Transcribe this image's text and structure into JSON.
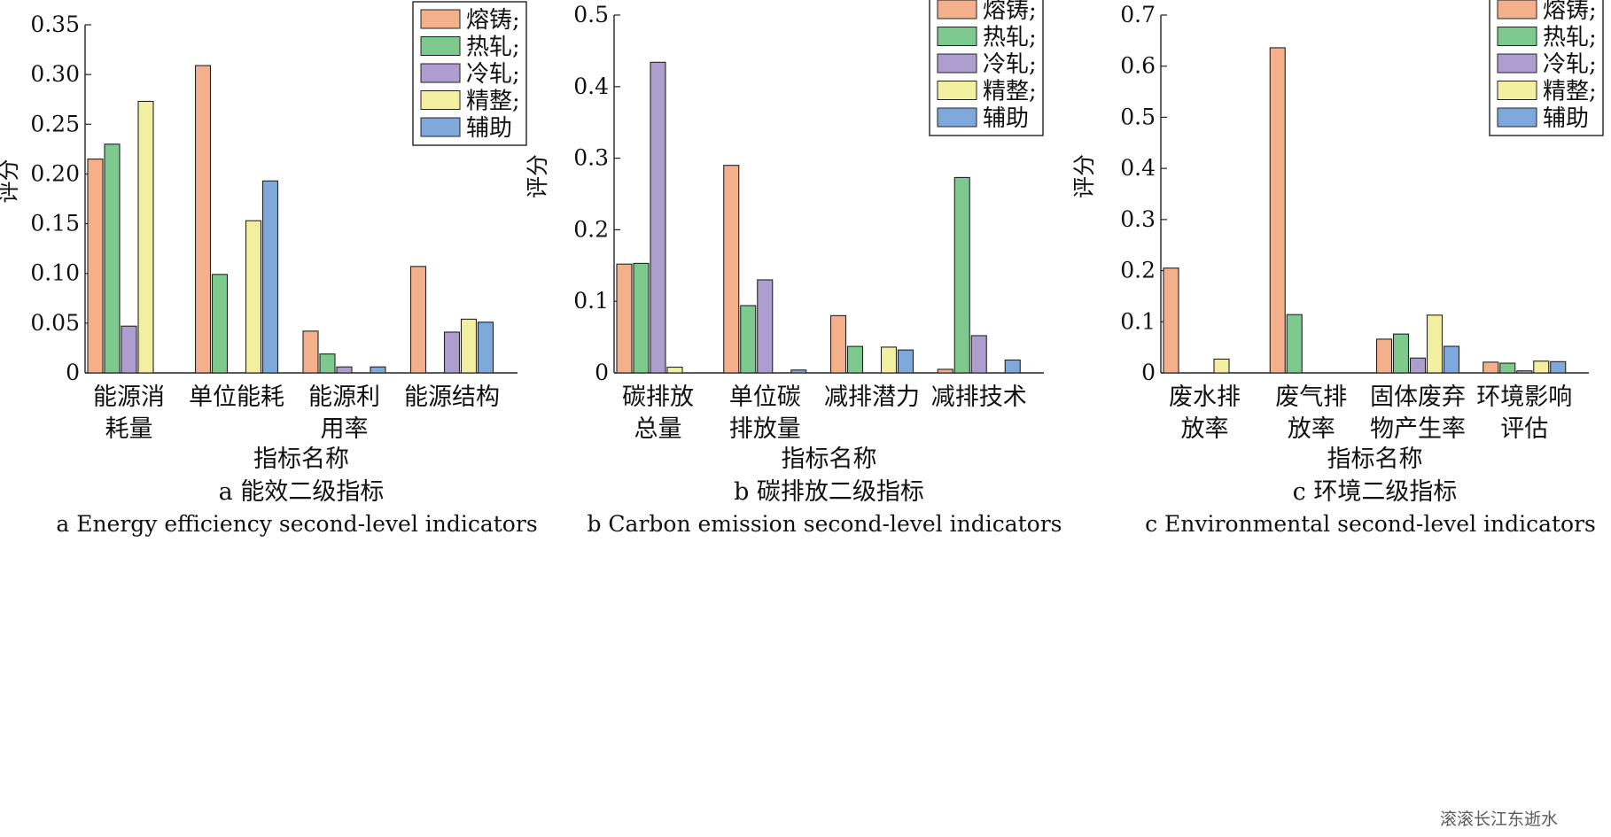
{
  "legend_labels": [
    "熔铸;",
    "热轧;",
    "冷轧;",
    "精整;",
    "辅助"
  ],
  "colors": [
    "#F4AF8B",
    "#7EC98E",
    "#AE9ED0",
    "#F3EFA1",
    "#7FA8DD"
  ],
  "watermark": "滚滚长江东逝水",
  "chart_data": [
    {
      "type": "bar",
      "caption_cn": "a  能效二级指标",
      "caption_en": "a  Energy efficiency second-level indicators",
      "xlabel": "指标名称",
      "ylabel": "评分",
      "ylim": [
        0,
        0.35
      ],
      "yticks": [
        "0",
        "0.05",
        "0.10",
        "0.15",
        "0.20",
        "0.25",
        "0.30",
        "0.35"
      ],
      "categories": [
        [
          "能源消",
          "耗量"
        ],
        [
          "单位能耗"
        ],
        [
          "能源利",
          "用率"
        ],
        [
          "能源结构"
        ]
      ],
      "legend": "top-right",
      "series": [
        {
          "name": "熔铸;",
          "values": [
            0.215,
            0.309,
            0.042,
            0.107
          ]
        },
        {
          "name": "热轧;",
          "values": [
            0.23,
            0.099,
            0.019,
            0.0
          ]
        },
        {
          "name": "冷轧;",
          "values": [
            0.047,
            0.0,
            0.006,
            0.041
          ]
        },
        {
          "name": "精整;",
          "values": [
            0.273,
            0.153,
            0.0,
            0.054
          ]
        },
        {
          "name": "辅助",
          "values": [
            0.0,
            0.193,
            0.006,
            0.051
          ]
        }
      ]
    },
    {
      "type": "bar",
      "caption_cn": "b  碳排放二级指标",
      "caption_en": "b  Carbon emission second-level indicators",
      "xlabel": "指标名称",
      "ylabel": "评分",
      "ylim": [
        0,
        0.5
      ],
      "yticks": [
        "0",
        "0.1",
        "0.2",
        "0.3",
        "0.4",
        "0.5"
      ],
      "categories": [
        [
          "碳排放",
          "总量"
        ],
        [
          "单位碳",
          "排放量"
        ],
        [
          "减排潜力"
        ],
        [
          "减排技术"
        ]
      ],
      "legend": "top-right",
      "series": [
        {
          "name": "熔铸;",
          "values": [
            0.152,
            0.29,
            0.08,
            0.005
          ]
        },
        {
          "name": "热轧;",
          "values": [
            0.153,
            0.094,
            0.037,
            0.273
          ]
        },
        {
          "name": "冷轧;",
          "values": [
            0.434,
            0.13,
            0.0,
            0.052
          ]
        },
        {
          "name": "精整;",
          "values": [
            0.008,
            0.0,
            0.036,
            0.0
          ]
        },
        {
          "name": "辅助",
          "values": [
            0.0,
            0.004,
            0.032,
            0.018
          ]
        }
      ]
    },
    {
      "type": "bar",
      "caption_cn": "c  环境二级指标",
      "caption_en": "c  Environmental second-level indicators",
      "xlabel": "指标名称",
      "ylabel": "评分",
      "ylim": [
        0,
        0.7
      ],
      "yticks": [
        "0",
        "0.1",
        "0.2",
        "0.3",
        "0.4",
        "0.5",
        "0.6",
        "0.7"
      ],
      "categories": [
        [
          "废水排",
          "放率"
        ],
        [
          "废气排",
          "放率"
        ],
        [
          "固体废弃",
          "物产生率"
        ],
        [
          "环境影响",
          "评估"
        ]
      ],
      "legend": "top-right",
      "series": [
        {
          "name": "熔铸;",
          "values": [
            0.205,
            0.636,
            0.066,
            0.021
          ]
        },
        {
          "name": "热轧;",
          "values": [
            0.0,
            0.114,
            0.076,
            0.019
          ]
        },
        {
          "name": "冷轧;",
          "values": [
            0.0,
            0.0,
            0.029,
            0.004
          ]
        },
        {
          "name": "精整;",
          "values": [
            0.027,
            0.0,
            0.113,
            0.023
          ]
        },
        {
          "name": "辅助",
          "values": [
            0.0,
            0.0,
            0.052,
            0.022
          ]
        }
      ]
    }
  ]
}
